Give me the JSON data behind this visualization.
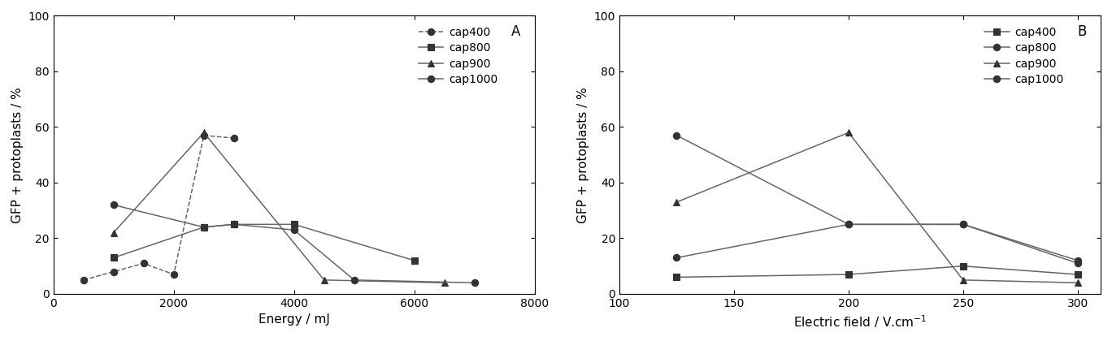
{
  "panel_A": {
    "xlabel": "Energy / mJ",
    "ylabel": "GFP + protoplasts / %",
    "label": "A",
    "xlim": [
      0,
      8000
    ],
    "ylim": [
      0,
      100
    ],
    "xticks": [
      0,
      2000,
      4000,
      6000,
      8000
    ],
    "yticks": [
      0,
      20,
      40,
      60,
      80,
      100
    ],
    "series": [
      {
        "name": "cap400",
        "x": [
          500,
          1000,
          1500,
          2000,
          2500,
          3000
        ],
        "y": [
          5,
          8,
          11,
          7,
          57,
          56
        ],
        "marker": "o",
        "linestyle": "--",
        "mfc": "black"
      },
      {
        "name": "cap800",
        "x": [
          1000,
          2500,
          3000,
          4000,
          6000
        ],
        "y": [
          13,
          24,
          25,
          25,
          12
        ],
        "marker": "s",
        "linestyle": "-",
        "mfc": "black"
      },
      {
        "name": "cap900",
        "x": [
          1000,
          2500,
          4500,
          6500
        ],
        "y": [
          22,
          58,
          5,
          4
        ],
        "marker": "^",
        "linestyle": "-",
        "mfc": "black"
      },
      {
        "name": "cap1000",
        "x": [
          1000,
          2500,
          3000,
          4000,
          5000,
          7000
        ],
        "y": [
          32,
          24,
          25,
          23,
          5,
          4
        ],
        "marker": "o",
        "linestyle": "-",
        "mfc": "black"
      }
    ],
    "legend_order": [
      0,
      1,
      2,
      3
    ]
  },
  "panel_B": {
    "xlabel": "Electric field / V.cm$^{-1}$",
    "ylabel": "GFP + protoplasts / %",
    "label": "B",
    "xlim": [
      100,
      310
    ],
    "ylim": [
      0,
      100
    ],
    "xticks": [
      100,
      150,
      200,
      250,
      300
    ],
    "yticks": [
      0,
      20,
      40,
      60,
      80,
      100
    ],
    "series": [
      {
        "name": "cap400",
        "x": [
          125,
          200,
          250,
          300
        ],
        "y": [
          6,
          7,
          10,
          7
        ],
        "marker": "s",
        "linestyle": "-",
        "mfc": "black"
      },
      {
        "name": "cap800",
        "x": [
          125,
          200,
          250,
          300
        ],
        "y": [
          13,
          25,
          25,
          11
        ],
        "marker": "o",
        "linestyle": "-",
        "mfc": "black"
      },
      {
        "name": "cap900",
        "x": [
          125,
          200,
          250,
          300
        ],
        "y": [
          33,
          58,
          5,
          4
        ],
        "marker": "^",
        "linestyle": "-",
        "mfc": "black"
      },
      {
        "name": "cap1000",
        "x": [
          125,
          200,
          250,
          300
        ],
        "y": [
          57,
          25,
          25,
          12
        ],
        "marker": "o",
        "linestyle": "-",
        "mfc": "black"
      }
    ],
    "legend_order": [
      0,
      1,
      2,
      3
    ]
  },
  "line_color": "#666666",
  "marker_fill": "#333333",
  "marker_edge": "#333333",
  "marker_size": 6,
  "linewidth": 1.1,
  "fontsize_label": 11,
  "fontsize_tick": 10,
  "fontsize_legend": 10,
  "fontsize_panel": 12
}
